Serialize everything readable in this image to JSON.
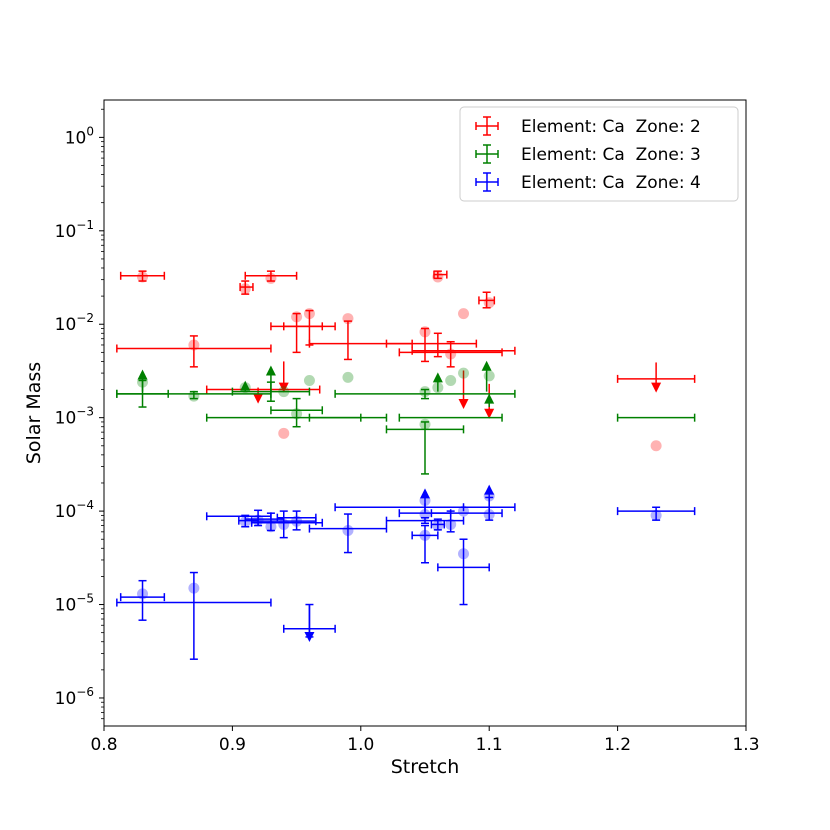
{
  "chart_data": {
    "type": "scatter",
    "title": "",
    "xlabel": "Stretch",
    "ylabel": "Solar Mass",
    "xlim": [
      0.8,
      1.3
    ],
    "ylim_log10": [
      -6.3,
      0.4
    ],
    "yscale": "log",
    "x_ticks": [
      {
        "value": 0.8,
        "label": "0.8"
      },
      {
        "value": 0.9,
        "label": "0.9"
      },
      {
        "value": 1.0,
        "label": "1.0"
      },
      {
        "value": 1.1,
        "label": "1.1"
      },
      {
        "value": 1.2,
        "label": "1.2"
      },
      {
        "value": 1.3,
        "label": "1.3"
      }
    ],
    "y_ticks": [
      {
        "exp": 0,
        "base": "10",
        "sup": "0"
      },
      {
        "exp": -1,
        "base": "10",
        "sup": "−1"
      },
      {
        "exp": -2,
        "base": "10",
        "sup": "−2"
      },
      {
        "exp": -3,
        "base": "10",
        "sup": "−3"
      },
      {
        "exp": -4,
        "base": "10",
        "sup": "−4"
      },
      {
        "exp": -5,
        "base": "10",
        "sup": "−5"
      },
      {
        "exp": -6,
        "base": "10",
        "sup": "−6"
      }
    ],
    "legend": {
      "position": "upper-right",
      "entries": [
        {
          "label": "Element: Ca  Zone: 2",
          "color": "#ff0000"
        },
        {
          "label": "Element: Ca  Zone: 3",
          "color": "#008000"
        },
        {
          "label": "Element: Ca  Zone: 4",
          "color": "#0000ff"
        }
      ]
    },
    "series": [
      {
        "name": "Element: Ca  Zone: 2",
        "color": "#ff0000",
        "errorbars": [
          {
            "x": 0.83,
            "y": 0.033,
            "xerr": [
              0.813,
              0.847
            ],
            "yerr": [
              0.029,
              0.037
            ]
          },
          {
            "x": 0.87,
            "y": 0.0055,
            "xerr": [
              0.81,
              0.93
            ],
            "yerr": [
              0.0035,
              0.0075
            ]
          },
          {
            "x": 0.91,
            "y": 0.025,
            "xerr": [
              0.906,
              0.916
            ],
            "yerr": [
              0.021,
              0.029
            ]
          },
          {
            "x": 0.93,
            "y": 0.033,
            "xerr": [
              0.91,
              0.95
            ],
            "yerr": [
              0.029,
              0.037
            ]
          },
          {
            "x": 0.91,
            "y": 0.002,
            "xerr": [
              0.88,
              0.968
            ],
            "yerr": null
          },
          {
            "x": 0.95,
            "y": 0.0095,
            "xerr": [
              0.93,
              0.97
            ],
            "yerr": [
              0.005,
              0.013
            ]
          },
          {
            "x": 0.96,
            "y": 0.0095,
            "xerr": [
              0.94,
              0.98
            ],
            "yerr": [
              0.006,
              0.014
            ]
          },
          {
            "x": 0.99,
            "y": 0.0062,
            "xerr": [
              0.96,
              1.04
            ],
            "yerr": [
              0.0042,
              0.0108
            ]
          },
          {
            "x": 1.05,
            "y": 0.0052,
            "xerr": [
              1.04,
              1.12
            ],
            "yerr": [
              0.004,
              0.009
            ]
          },
          {
            "x": 1.06,
            "y": 0.0062,
            "xerr": [
              1.02,
              1.09
            ],
            "yerr": [
              0.0045,
              0.008
            ]
          },
          {
            "x": 1.06,
            "y": 0.034,
            "xerr": [
              1.057,
              1.067
            ],
            "yerr": [
              0.031,
              0.037
            ]
          },
          {
            "x": 1.07,
            "y": 0.005,
            "xerr": [
              1.03,
              1.11
            ],
            "yerr": [
              0.0035,
              0.0065
            ]
          },
          {
            "x": 1.098,
            "y": 0.018,
            "xerr": [
              1.092,
              1.104
            ],
            "yerr": [
              0.015,
              0.022
            ]
          },
          {
            "x": 1.23,
            "y": 0.0026,
            "xerr": [
              1.2,
              1.26
            ],
            "yerr": null
          }
        ],
        "points": [
          {
            "x": 0.83,
            "y": 0.032
          },
          {
            "x": 0.87,
            "y": 0.006
          },
          {
            "x": 0.91,
            "y": 0.024
          },
          {
            "x": 0.93,
            "y": 0.031
          },
          {
            "x": 0.94,
            "y": 0.00068
          },
          {
            "x": 0.95,
            "y": 0.012
          },
          {
            "x": 0.96,
            "y": 0.013
          },
          {
            "x": 0.99,
            "y": 0.0115
          },
          {
            "x": 1.05,
            "y": 0.0083
          },
          {
            "x": 1.06,
            "y": 0.032
          },
          {
            "x": 1.07,
            "y": 0.0048
          },
          {
            "x": 1.08,
            "y": 0.013
          },
          {
            "x": 1.1,
            "y": 0.017
          },
          {
            "x": 1.23,
            "y": 0.0005
          }
        ],
        "upper_limits": [
          {
            "x": 0.92,
            "y": 0.0016,
            "top": 0.0021
          },
          {
            "x": 0.94,
            "y": 0.0021,
            "top": 0.004
          },
          {
            "x": 1.08,
            "y": 0.0014,
            "top": 0.0032
          },
          {
            "x": 1.1,
            "y": 0.0011,
            "top": 0.0023
          },
          {
            "x": 1.23,
            "y": 0.0021,
            "top": 0.0039
          }
        ]
      },
      {
        "name": "Element: Ca  Zone: 3",
        "color": "#008000",
        "errorbars": [
          {
            "x": 0.83,
            "y": 0.0018,
            "xerr": [
              0.81,
              0.85
            ],
            "yerr": [
              0.0013,
              0.0025
            ]
          },
          {
            "x": 0.87,
            "y": 0.0018,
            "xerr": [
              0.81,
              0.93
            ],
            "yerr": [
              0.0016,
              0.0019
            ]
          },
          {
            "x": 0.93,
            "y": 0.0019,
            "xerr": [
              0.9,
              0.96
            ],
            "yerr": [
              0.0015,
              0.0024
            ]
          },
          {
            "x": 0.95,
            "y": 0.0012,
            "xerr": [
              0.93,
              0.97
            ],
            "yerr": [
              0.0008,
              0.0016
            ]
          },
          {
            "x": 0.94,
            "y": 0.001,
            "xerr": [
              0.88,
              1.0
            ],
            "yerr": null
          },
          {
            "x": 1.0,
            "y": 0.001,
            "xerr": [
              0.96,
              1.02
            ],
            "yerr": null
          },
          {
            "x": 1.05,
            "y": 0.00075,
            "xerr": [
              1.02,
              1.08
            ],
            "yerr": [
              0.00025,
              0.0009
            ]
          },
          {
            "x": 1.05,
            "y": 0.0018,
            "xerr": [
              0.98,
              1.12
            ],
            "yerr": [
              0.0016,
              0.002
            ]
          },
          {
            "x": 1.07,
            "y": 0.001,
            "xerr": [
              1.03,
              1.11
            ],
            "yerr": null
          },
          {
            "x": 1.23,
            "y": 0.001,
            "xerr": [
              1.2,
              1.26
            ],
            "yerr": null
          }
        ],
        "points": [
          {
            "x": 0.83,
            "y": 0.0024
          },
          {
            "x": 0.87,
            "y": 0.0017
          },
          {
            "x": 0.91,
            "y": 0.0021
          },
          {
            "x": 0.94,
            "y": 0.0019
          },
          {
            "x": 0.95,
            "y": 0.0011
          },
          {
            "x": 0.96,
            "y": 0.0025
          },
          {
            "x": 0.99,
            "y": 0.0027
          },
          {
            "x": 1.05,
            "y": 0.0019
          },
          {
            "x": 1.05,
            "y": 0.00085
          },
          {
            "x": 1.06,
            "y": 0.0021
          },
          {
            "x": 1.07,
            "y": 0.0025
          },
          {
            "x": 1.08,
            "y": 0.003
          },
          {
            "x": 1.1,
            "y": 0.0028
          }
        ],
        "lower_limits": [
          {
            "x": 0.83,
            "y": 0.0029,
            "bottom": 0.0019
          },
          {
            "x": 0.91,
            "y": 0.0022,
            "bottom": 0.0019
          },
          {
            "x": 0.93,
            "y": 0.0032,
            "bottom": 0.0019
          },
          {
            "x": 1.06,
            "y": 0.0027,
            "bottom": 0.0019
          },
          {
            "x": 1.098,
            "y": 0.0036,
            "bottom": 0.0019
          },
          {
            "x": 1.1,
            "y": 0.0016,
            "bottom": 0.0013
          }
        ]
      },
      {
        "name": "Element: Ca  Zone: 4",
        "color": "#0000ff",
        "errorbars": [
          {
            "x": 0.83,
            "y": 1.2e-05,
            "xerr": [
              0.813,
              0.847
            ],
            "yerr": [
              6.8e-06,
              1.8e-05
            ]
          },
          {
            "x": 0.87,
            "y": 1.05e-05,
            "xerr": [
              0.81,
              0.93
            ],
            "yerr": [
              2.6e-06,
              2.2e-05
            ]
          },
          {
            "x": 0.91,
            "y": 7.9e-05,
            "xerr": [
              0.905,
              0.92
            ],
            "yerr": [
              6.8e-05,
              9e-05
            ]
          },
          {
            "x": 0.92,
            "y": 8.2e-05,
            "xerr": [
              0.91,
              0.94
            ],
            "yerr": [
              7e-05,
              0.000102
            ]
          },
          {
            "x": 0.93,
            "y": 7.8e-05,
            "xerr": [
              0.915,
              0.965
            ],
            "yerr": [
              6.2e-05,
              9.5e-05
            ]
          },
          {
            "x": 0.94,
            "y": 7.5e-05,
            "xerr": [
              0.915,
              0.97
            ],
            "yerr": [
              5.2e-05,
              0.0001
            ]
          },
          {
            "x": 0.95,
            "y": 8.5e-05,
            "xerr": [
              0.935,
              0.965
            ],
            "yerr": [
              6.3e-05,
              0.0001
            ]
          },
          {
            "x": 0.9,
            "y": 8.8e-05,
            "xerr": [
              0.88,
              0.93
            ],
            "yerr": null
          },
          {
            "x": 0.96,
            "y": 5.5e-06,
            "xerr": [
              0.94,
              0.98
            ],
            "yerr": [
              4.5e-06,
              1e-05
            ]
          },
          {
            "x": 0.99,
            "y": 6.5e-05,
            "xerr": [
              0.96,
              1.02
            ],
            "yerr": [
              3.6e-05,
              9.3e-05
            ]
          },
          {
            "x": 1.03,
            "y": 0.00011,
            "xerr": [
              0.98,
              1.08
            ],
            "yerr": null
          },
          {
            "x": 1.05,
            "y": 7.9e-05,
            "xerr": [
              1.02,
              1.08
            ],
            "yerr": [
              7.4e-05,
              8.5e-05
            ]
          },
          {
            "x": 1.05,
            "y": 9.5e-05,
            "xerr": [
              1.03,
              1.07
            ],
            "yerr": null
          },
          {
            "x": 1.06,
            "y": 7.2e-05,
            "xerr": [
              1.055,
              1.065
            ],
            "yerr": [
              6.3e-05,
              8.2e-05
            ]
          },
          {
            "x": 1.07,
            "y": 9.5e-05,
            "xerr": [
              1.055,
              1.11
            ],
            "yerr": [
              6e-05,
              0.0001
            ]
          },
          {
            "x": 1.08,
            "y": 2.5e-05,
            "xerr": [
              1.06,
              1.1
            ],
            "yerr": [
              1e-05,
              5e-05
            ]
          },
          {
            "x": 1.1,
            "y": 0.00011,
            "xerr": [
              1.05,
              1.12
            ],
            "yerr": [
              8e-05,
              0.00014
            ]
          },
          {
            "x": 1.05,
            "y": 5.5e-05,
            "xerr": [
              1.04,
              1.06
            ],
            "yerr": [
              2.8e-05,
              7e-05
            ]
          },
          {
            "x": 1.23,
            "y": 0.0001,
            "xerr": [
              1.2,
              1.26
            ],
            "yerr": [
              8e-05,
              0.00011
            ]
          }
        ],
        "points": [
          {
            "x": 0.83,
            "y": 1.3e-05
          },
          {
            "x": 0.87,
            "y": 1.5e-05
          },
          {
            "x": 0.91,
            "y": 7.7e-05
          },
          {
            "x": 0.92,
            "y": 8e-05
          },
          {
            "x": 0.93,
            "y": 6.8e-05
          },
          {
            "x": 0.94,
            "y": 7.2e-05
          },
          {
            "x": 0.95,
            "y": 7.8e-05
          },
          {
            "x": 0.99,
            "y": 6.2e-05
          },
          {
            "x": 1.05,
            "y": 5.5e-05
          },
          {
            "x": 1.05,
            "y": 9.2e-05
          },
          {
            "x": 1.05,
            "y": 0.00013
          },
          {
            "x": 1.06,
            "y": 7e-05
          },
          {
            "x": 1.07,
            "y": 7.2e-05
          },
          {
            "x": 1.08,
            "y": 3.5e-05
          },
          {
            "x": 1.08,
            "y": 0.0001
          },
          {
            "x": 1.1,
            "y": 9.2e-05
          },
          {
            "x": 1.1,
            "y": 0.000145
          },
          {
            "x": 1.23,
            "y": 9e-05
          }
        ],
        "lower_limits": [
          {
            "x": 1.05,
            "y": 0.000155,
            "bottom": 9.5e-05
          },
          {
            "x": 1.1,
            "y": 0.00017,
            "bottom": 9.5e-05
          }
        ],
        "upper_limits": [
          {
            "x": 0.96,
            "y": 4.5e-06,
            "top": 1e-05
          }
        ]
      }
    ]
  }
}
